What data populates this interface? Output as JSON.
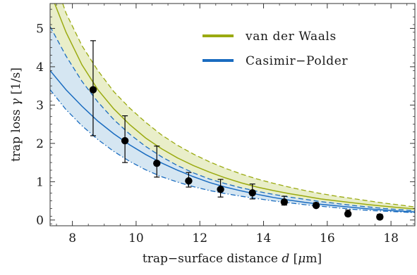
{
  "chart_data": {
    "type": "line",
    "xlabel_prefix": "trap−surface distance ",
    "xlabel_var": "d",
    "xlabel_suffix_open": " [",
    "xlabel_unit_mu": "μ",
    "xlabel_unit_rest": "m]",
    "ylabel_prefix": "trap loss ",
    "ylabel_var": "γ",
    "ylabel_suffix": " [1/s]",
    "xlim": [
      7.3,
      18.75
    ],
    "ylim": [
      -0.15,
      5.65
    ],
    "xticks": [
      8,
      10,
      12,
      14,
      16,
      18
    ],
    "xtick_labels": [
      "8",
      "10",
      "12",
      "14",
      "16",
      "18"
    ],
    "yticks": [
      0,
      1,
      2,
      3,
      4,
      5
    ],
    "ytick_labels": [
      "0",
      "1",
      "2",
      "3",
      "4",
      "5"
    ],
    "legend_position": "top-right",
    "legend": [
      {
        "label": "van der Waals",
        "color": "#9aaa10"
      },
      {
        "label": "Casimir−Polder",
        "color": "#1a6cc0"
      }
    ],
    "colors": {
      "vdw": "#9aaa10",
      "vdw_fill": "#e9eec9",
      "cp": "#1a6cc0",
      "cp_fill": "#d5e6f2",
      "points": "#000000"
    },
    "curves": {
      "x": [
        7.3,
        7.8,
        8.3,
        8.8,
        9.3,
        9.8,
        10.3,
        10.8,
        11.3,
        11.8,
        12.3,
        12.8,
        13.3,
        13.8,
        14.3,
        14.8,
        15.3,
        15.8,
        16.3,
        16.8,
        17.3,
        17.8,
        18.3,
        18.75
      ],
      "vdw_upper": [
        6.6,
        5.4,
        4.55,
        3.9,
        3.35,
        2.92,
        2.55,
        2.22,
        1.95,
        1.72,
        1.52,
        1.35,
        1.2,
        1.07,
        0.96,
        0.86,
        0.77,
        0.69,
        0.62,
        0.56,
        0.5,
        0.44,
        0.39,
        0.34
      ],
      "vdw_central": [
        5.95,
        4.9,
        4.05,
        3.4,
        2.9,
        2.49,
        2.14,
        1.86,
        1.62,
        1.42,
        1.25,
        1.1,
        0.97,
        0.86,
        0.77,
        0.69,
        0.62,
        0.55,
        0.5,
        0.45,
        0.4,
        0.36,
        0.32,
        0.29
      ],
      "cp_upper": [
        5.05,
        4.28,
        3.62,
        3.08,
        2.62,
        2.24,
        1.92,
        1.65,
        1.42,
        1.23,
        1.07,
        0.95,
        0.84,
        0.75,
        0.67,
        0.6,
        0.54,
        0.48,
        0.43,
        0.38,
        0.34,
        0.3,
        0.27,
        0.24
      ],
      "cp_central": [
        3.9,
        3.4,
        2.97,
        2.58,
        2.25,
        1.96,
        1.71,
        1.49,
        1.3,
        1.13,
        0.98,
        0.86,
        0.76,
        0.67,
        0.59,
        0.52,
        0.46,
        0.41,
        0.37,
        0.33,
        0.29,
        0.26,
        0.23,
        0.21
      ],
      "cp_lower": [
        3.4,
        2.88,
        2.46,
        2.1,
        1.79,
        1.53,
        1.31,
        1.13,
        0.99,
        0.87,
        0.77,
        0.69,
        0.62,
        0.56,
        0.5,
        0.45,
        0.4,
        0.36,
        0.32,
        0.28,
        0.25,
        0.23,
        0.21,
        0.19
      ]
    },
    "points": [
      {
        "x": 8.65,
        "y": 3.4,
        "err_low": 2.2,
        "err_high": 4.68
      },
      {
        "x": 9.65,
        "y": 2.07,
        "err_low": 1.5,
        "err_high": 2.72
      },
      {
        "x": 10.65,
        "y": 1.48,
        "err_low": 1.12,
        "err_high": 1.93
      },
      {
        "x": 11.65,
        "y": 1.02,
        "err_low": 0.86,
        "err_high": 1.24
      },
      {
        "x": 12.65,
        "y": 0.8,
        "err_low": 0.6,
        "err_high": 1.06
      },
      {
        "x": 13.65,
        "y": 0.71,
        "err_low": 0.55,
        "err_high": 0.94
      },
      {
        "x": 14.65,
        "y": 0.47,
        "err_low": 0.39,
        "err_high": 0.62
      },
      {
        "x": 15.65,
        "y": 0.38,
        "err_low": 0.33,
        "err_high": 0.45
      },
      {
        "x": 16.65,
        "y": 0.16,
        "err_low": 0.1,
        "err_high": 0.26
      },
      {
        "x": 17.65,
        "y": 0.08,
        "err_low": 0.02,
        "err_high": 0.15
      }
    ]
  }
}
